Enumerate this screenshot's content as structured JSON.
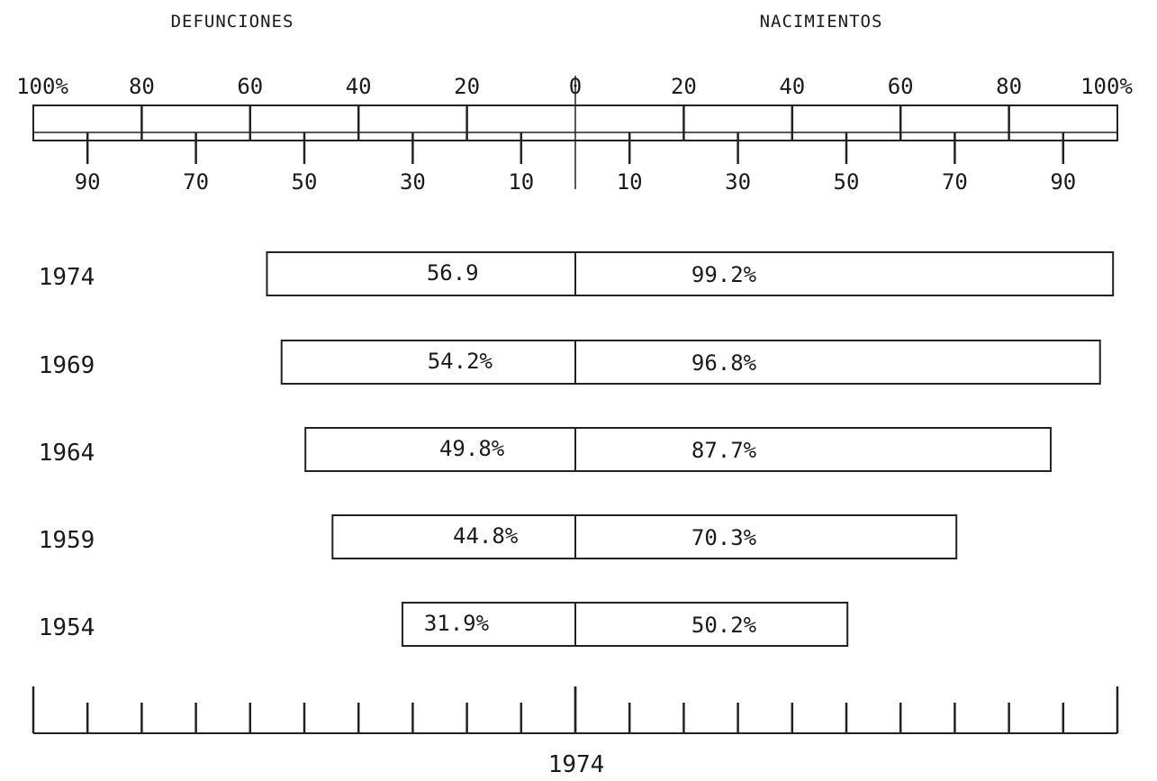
{
  "chart_data": {
    "type": "bar",
    "layout": "diverging-horizontal",
    "left_label": "DEFUNCIONES",
    "right_label": "NACIMIENTOS",
    "categories": [
      "1974",
      "1969",
      "1964",
      "1959",
      "1954"
    ],
    "series": [
      {
        "name": "DEFUNCIONES",
        "side": "left",
        "values": [
          56.9,
          54.2,
          49.8,
          44.8,
          31.9
        ],
        "labels": [
          "56.9",
          "54.2%",
          "49.8%",
          "44.8%",
          "31.9%"
        ]
      },
      {
        "name": "NACIMIENTOS",
        "side": "right",
        "values": [
          99.2,
          96.8,
          87.7,
          70.3,
          50.2
        ],
        "labels": [
          "99.2%",
          "96.8%",
          "87.7%",
          "70.3%",
          "50.2%"
        ]
      }
    ],
    "xlim": [
      0,
      100
    ],
    "top_axis": {
      "major": [
        0,
        20,
        40,
        60,
        80,
        100
      ],
      "major_labels_left": [
        "100%",
        "80",
        "60",
        "40",
        "20"
      ],
      "center_label": "0",
      "major_labels_right": [
        "20",
        "40",
        "60",
        "80",
        "100%"
      ],
      "minor": [
        10,
        30,
        50,
        70,
        90
      ],
      "minor_labels_left": [
        "90",
        "70",
        "50",
        "30",
        "10"
      ],
      "minor_labels_right": [
        "10",
        "30",
        "50",
        "70",
        "90"
      ]
    },
    "bottom_label": "1974",
    "grid": false,
    "colors": {
      "ink": "#222222",
      "background": "#ffffff"
    }
  }
}
